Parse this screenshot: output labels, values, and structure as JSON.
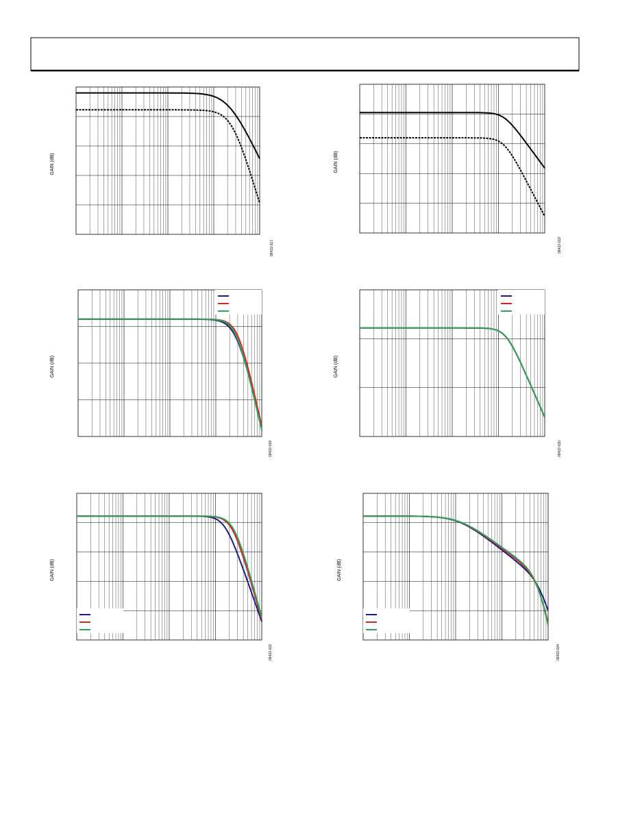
{
  "figures": [
    {
      "y_axis_label": "GAIN (dB)",
      "figure_id": "09422-017"
    },
    {
      "y_axis_label": "GAIN (dB)",
      "figure_id": "09422-019"
    },
    {
      "y_axis_label": "GAIN (dB)",
      "figure_id": "09422-018"
    },
    {
      "y_axis_label": "GAIN (dB)",
      "figure_id": "09422-020"
    },
    {
      "y_axis_label": "GAIN (dB)",
      "figure_id": "09422-022"
    },
    {
      "y_axis_label": "GAIN (dB)",
      "figure_id": "09422-024"
    }
  ]
}
